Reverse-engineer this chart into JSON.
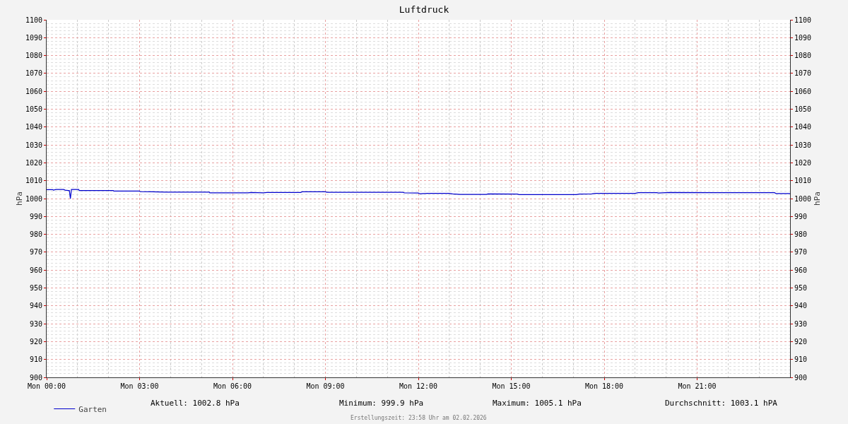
{
  "chart_data": {
    "type": "line",
    "title": "Luftdruck",
    "ylabel": "hPa",
    "y2label": "hPa",
    "x": [
      "2026-02-02T00:00",
      "2026-02-02T00:12",
      "2026-02-02T00:13",
      "2026-02-02T00:18",
      "2026-02-02T00:33",
      "2026-02-02T00:36",
      "2026-02-02T00:42",
      "2026-02-02T00:44",
      "2026-02-02T00:46",
      "2026-02-02T00:48",
      "2026-02-02T01:02",
      "2026-02-02T01:03",
      "2026-02-02T02:09",
      "2026-02-02T02:10",
      "2026-02-02T03:00",
      "2026-02-02T03:01",
      "2026-02-02T03:24",
      "2026-02-02T03:51",
      "2026-02-02T05:15",
      "2026-02-02T05:16",
      "2026-02-02T06:30",
      "2026-02-02T06:36",
      "2026-02-02T07:00",
      "2026-02-02T07:06",
      "2026-02-02T08:12",
      "2026-02-02T08:15",
      "2026-02-02T09:00",
      "2026-02-02T09:03",
      "2026-02-02T11:30",
      "2026-02-02T11:33",
      "2026-02-02T12:00",
      "2026-02-02T12:03",
      "2026-02-02T12:18",
      "2026-02-02T13:00",
      "2026-02-02T13:06",
      "2026-02-02T13:21",
      "2026-02-02T14:12",
      "2026-02-02T14:15",
      "2026-02-02T15:12",
      "2026-02-02T15:15",
      "2026-02-02T17:06",
      "2026-02-02T17:12",
      "2026-02-02T17:36",
      "2026-02-02T17:42",
      "2026-02-02T19:00",
      "2026-02-02T19:06",
      "2026-02-02T19:42",
      "2026-02-02T19:45",
      "2026-02-02T20:06",
      "2026-02-02T22:30",
      "2026-02-02T23:30",
      "2026-02-02T23:33",
      "2026-02-03T00:00"
    ],
    "series": [
      {
        "name": "Garten",
        "color": "#0000cc",
        "values": [
          1005.0,
          1005.0,
          1004.7,
          1005.1,
          1005.1,
          1004.7,
          1004.5,
          1004.5,
          999.9,
          1005.1,
          1005.1,
          1004.5,
          1004.5,
          1004.2,
          1004.2,
          1003.9,
          1003.8,
          1003.6,
          1003.6,
          1003.2,
          1003.2,
          1003.4,
          1003.2,
          1003.4,
          1003.4,
          1003.8,
          1003.8,
          1003.5,
          1003.5,
          1003.2,
          1003.1,
          1002.7,
          1002.9,
          1002.9,
          1002.6,
          1002.3,
          1002.3,
          1002.6,
          1002.5,
          1002.2,
          1002.2,
          1002.5,
          1002.6,
          1002.9,
          1002.9,
          1003.3,
          1003.3,
          1003.1,
          1003.4,
          1003.3,
          1003.3,
          1002.8,
          1002.8
        ]
      }
    ],
    "xlim": [
      "2026-02-02T00:00",
      "2026-02-03T00:00"
    ],
    "xticks": [
      {
        "value": "2026-02-02T00:00",
        "label": "Mon 00:00"
      },
      {
        "value": "2026-02-02T03:00",
        "label": "Mon 03:00"
      },
      {
        "value": "2026-02-02T06:00",
        "label": "Mon 06:00"
      },
      {
        "value": "2026-02-02T09:00",
        "label": "Mon 09:00"
      },
      {
        "value": "2026-02-02T12:00",
        "label": "Mon 12:00"
      },
      {
        "value": "2026-02-02T15:00",
        "label": "Mon 15:00"
      },
      {
        "value": "2026-02-02T18:00",
        "label": "Mon 18:00"
      },
      {
        "value": "2026-02-02T21:00",
        "label": "Mon 21:00"
      }
    ],
    "ylim": [
      900,
      1100
    ],
    "yticks": [
      900,
      910,
      920,
      930,
      940,
      950,
      960,
      970,
      980,
      990,
      1000,
      1010,
      1020,
      1030,
      1040,
      1050,
      1060,
      1070,
      1080,
      1090,
      1100
    ],
    "y2lim": [
      900,
      1100
    ],
    "y2ticks": [
      900,
      910,
      920,
      930,
      940,
      950,
      960,
      970,
      980,
      990,
      1000,
      1010,
      1020,
      1030,
      1040,
      1050,
      1060,
      1070,
      1080,
      1090,
      1100
    ],
    "grid": true,
    "legend": "bottom left",
    "marker": "none",
    "line_style": "solid",
    "annotations": [
      "Aktuell: 1002.8 hPa",
      "Minimum: 999.9 hPa",
      "Maximum: 1005.1 hPa",
      "Durchschnitt: 1003.1 hPA",
      "Erstellungszeit: 23:58 Uhr am 02.02.2026"
    ]
  }
}
